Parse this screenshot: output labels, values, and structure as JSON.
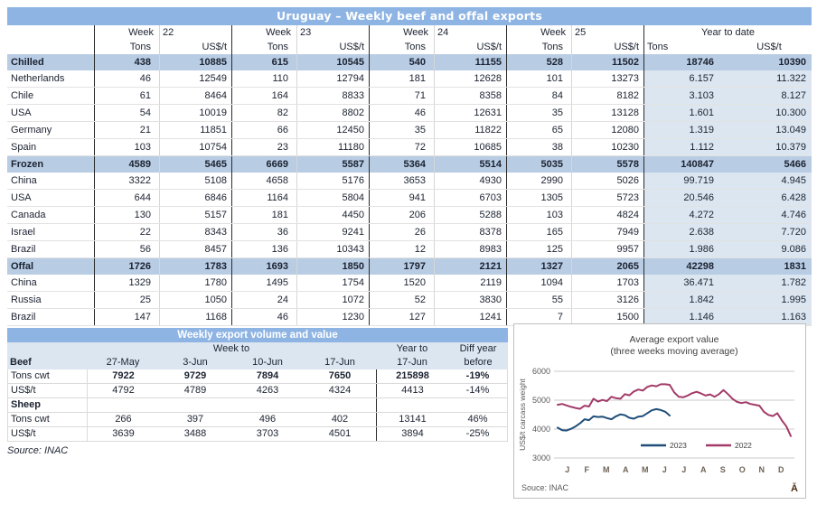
{
  "colors": {
    "title_band": "#8EB4E3",
    "section_band": "#B8CCE4",
    "ytd_band": "#DCE6F1",
    "series_2023": "#1F4E79",
    "series_2022": "#A23B69",
    "chart_text": "#595959",
    "month_text": "#6e6256",
    "corner_mark_color": "#4a2e17"
  },
  "main_table": {
    "title": "Uruguay – Weekly beef and offal exports",
    "week_label": "Week",
    "weeks": [
      "22",
      "23",
      "24",
      "25"
    ],
    "ytd_label": "Year to date",
    "col_tons": "Tons",
    "col_usd": "US$/t",
    "rows": [
      {
        "label": "Chilled",
        "type": "section",
        "values": [
          "438",
          "10885",
          "615",
          "10545",
          "540",
          "11155",
          "528",
          "11502",
          "18746",
          "10390"
        ]
      },
      {
        "label": "Netherlands",
        "type": "country",
        "values": [
          "46",
          "12549",
          "110",
          "12794",
          "181",
          "12628",
          "101",
          "13273",
          "6.157",
          "11.322"
        ]
      },
      {
        "label": "Chile",
        "type": "country",
        "values": [
          "61",
          "8464",
          "164",
          "8833",
          "71",
          "8358",
          "84",
          "8182",
          "3.103",
          "8.127"
        ]
      },
      {
        "label": "USA",
        "type": "country",
        "values": [
          "54",
          "10019",
          "82",
          "8802",
          "46",
          "12631",
          "35",
          "13128",
          "1.601",
          "10.300"
        ]
      },
      {
        "label": "Germany",
        "type": "country",
        "values": [
          "21",
          "11851",
          "66",
          "12450",
          "35",
          "11822",
          "65",
          "12080",
          "1.319",
          "13.049"
        ]
      },
      {
        "label": "Spain",
        "type": "country",
        "values": [
          "103",
          "10754",
          "23",
          "11180",
          "72",
          "10685",
          "38",
          "10230",
          "1.112",
          "10.379"
        ]
      },
      {
        "label": "Frozen",
        "type": "section",
        "values": [
          "4589",
          "5465",
          "6669",
          "5587",
          "5364",
          "5514",
          "5035",
          "5578",
          "140847",
          "5466"
        ]
      },
      {
        "label": "China",
        "type": "country",
        "values": [
          "3322",
          "5108",
          "4658",
          "5176",
          "3653",
          "4930",
          "2990",
          "5026",
          "99.719",
          "4.945"
        ]
      },
      {
        "label": "USA",
        "type": "country",
        "values": [
          "644",
          "6846",
          "1164",
          "5804",
          "941",
          "6703",
          "1305",
          "5723",
          "20.546",
          "6.428"
        ]
      },
      {
        "label": "Canada",
        "type": "country",
        "values": [
          "130",
          "5157",
          "181",
          "4450",
          "206",
          "5288",
          "103",
          "4824",
          "4.272",
          "4.746"
        ]
      },
      {
        "label": "Israel",
        "type": "country",
        "values": [
          "22",
          "8343",
          "36",
          "9241",
          "26",
          "8378",
          "165",
          "7949",
          "2.638",
          "7.720"
        ]
      },
      {
        "label": "Brazil",
        "type": "country",
        "values": [
          "56",
          "8457",
          "136",
          "10343",
          "12",
          "8983",
          "125",
          "9957",
          "1.986",
          "9.086"
        ]
      },
      {
        "label": "Offal",
        "type": "section",
        "values": [
          "1726",
          "1783",
          "1693",
          "1850",
          "1797",
          "2121",
          "1327",
          "2065",
          "42298",
          "1831"
        ]
      },
      {
        "label": "China",
        "type": "country",
        "values": [
          "1329",
          "1780",
          "1495",
          "1754",
          "1520",
          "2119",
          "1094",
          "1703",
          "36.471",
          "1.782"
        ]
      },
      {
        "label": "Russia",
        "type": "country",
        "values": [
          "25",
          "1050",
          "24",
          "1072",
          "52",
          "3830",
          "55",
          "3126",
          "1.842",
          "1.995"
        ]
      },
      {
        "label": "Brazil",
        "type": "country",
        "values": [
          "147",
          "1168",
          "46",
          "1230",
          "127",
          "1241",
          "7",
          "1500",
          "1.146",
          "1.163"
        ]
      }
    ]
  },
  "volume_table": {
    "title": "Weekly export volume and value",
    "header_top": {
      "week_to": "Week to",
      "year_to": "Year to",
      "diff_year": "Diff year"
    },
    "header_cols": [
      "Beef",
      "27-May",
      "3-Jun",
      "10-Jun",
      "17-Jun",
      "17-Jun",
      "before"
    ],
    "rows": [
      {
        "label": "Tons cwt",
        "bold_values": true,
        "section": false,
        "values": [
          "7922",
          "9729",
          "7894",
          "7650",
          "215898",
          "-19%"
        ]
      },
      {
        "label": "US$/t",
        "bold_values": false,
        "section": false,
        "values": [
          "4792",
          "4789",
          "4263",
          "4324",
          "4413",
          "-14%"
        ]
      },
      {
        "label": "Sheep",
        "bold_values": false,
        "section": true,
        "values": [
          "",
          "",
          "",
          "",
          "",
          ""
        ]
      },
      {
        "label": "Tons cwt",
        "bold_values": false,
        "section": false,
        "values": [
          "266",
          "397",
          "496",
          "402",
          "13141",
          "46%"
        ]
      },
      {
        "label": "US$/t",
        "bold_values": false,
        "section": false,
        "values": [
          "3639",
          "3488",
          "3703",
          "4501",
          "3894",
          "-25%"
        ]
      }
    ],
    "source": "Source: INAC"
  },
  "chart_data": {
    "type": "line",
    "title": "Average export  value",
    "subtitle": "(three weeks moving average)",
    "ylabel": "US$/t carcass weight",
    "ylim": [
      3000,
      6000
    ],
    "yticks": [
      "3000",
      "4000",
      "5000",
      "6000"
    ],
    "x_months": [
      "J",
      "F",
      "M",
      "A",
      "M",
      "J",
      "J",
      "A",
      "S",
      "O",
      "N",
      "D"
    ],
    "x_unit": "week of year (1-52)",
    "grid": "horizontal",
    "legend_position": "inside-bottom",
    "source": "Souce: INAC",
    "corner_mark": "Ā",
    "series": [
      {
        "name": "2023",
        "color": "#1F4E79",
        "values": [
          4050,
          3960,
          3950,
          4010,
          4090,
          4200,
          4340,
          4310,
          4440,
          4420,
          4430,
          4380,
          4340,
          4440,
          4510,
          4480,
          4390,
          4360,
          4430,
          4450,
          4550,
          4650,
          4690,
          4660,
          4600,
          4470
        ]
      },
      {
        "name": "2022",
        "color": "#A23B69",
        "values": [
          4840,
          4870,
          4820,
          4770,
          4730,
          4700,
          4810,
          4780,
          5050,
          4950,
          5010,
          4970,
          5120,
          5070,
          5050,
          5210,
          5170,
          5300,
          5370,
          5330,
          5460,
          5510,
          5480,
          5550,
          5550,
          5530,
          5270,
          5120,
          5100,
          5160,
          5240,
          5290,
          5230,
          5160,
          5200,
          5120,
          5210,
          5350,
          5210,
          5050,
          4940,
          4900,
          4930,
          4870,
          4840,
          4810,
          4600,
          4490,
          4450,
          4550,
          4300,
          4100,
          3760
        ]
      }
    ]
  }
}
